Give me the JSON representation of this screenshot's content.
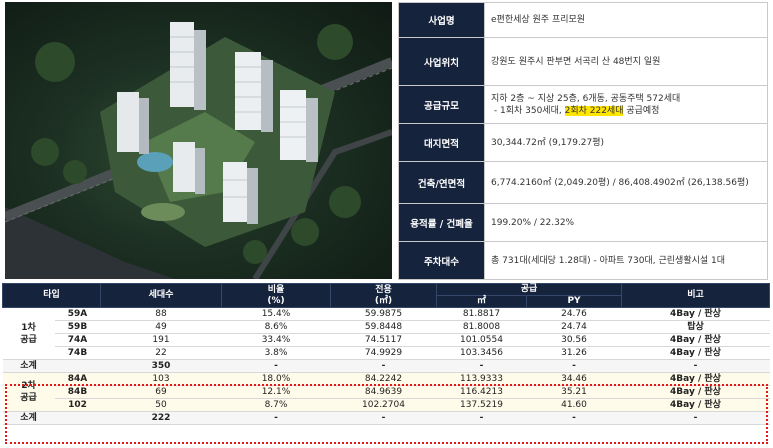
{
  "info": [
    {
      "label": "사업명",
      "value": "e편한세상 원주 프리모원"
    },
    {
      "label": "사업위치",
      "value": "강원도 원주시 판부면 서곡리 산 48번지 일원"
    },
    {
      "label": "공급규모",
      "line1": "지하 2층 ~ 지상 25층, 6개동, 공동주택 572세대",
      "line2_pre": "- 1회차 350세대, ",
      "line2_hl": "2회차 222세대",
      "line2_post": " 공급예정"
    },
    {
      "label": "대지면적",
      "value": "30,344.72㎡ (9,179.27평)"
    },
    {
      "label": "건축/연면적",
      "value": "6,774.2160㎡ (2,049.20평) / 86,408.4902㎡ (26,138.56평)"
    },
    {
      "label": "용적률 / 건폐율",
      "value": "199.20% / 22.32%"
    },
    {
      "label": "주차대수",
      "value": "총 731대(세대당 1.28대) - 아파트 730대, 근린생활시설 1대"
    }
  ],
  "spec": {
    "headers": {
      "type": "타입",
      "units": "세대수",
      "ratio": "비율",
      "ratio_unit": "(%)",
      "exclusive": "전용",
      "exclusive_unit": "(㎡)",
      "supply": "공급",
      "supply_m2": "㎡",
      "supply_py": "PY",
      "note": "비고"
    },
    "round1": {
      "label_a": "1차",
      "label_b": "공급",
      "rows": [
        {
          "type": "59A",
          "units": "88",
          "ratio": "15.4%",
          "exclusive": "59.9875",
          "m2": "81.8817",
          "py": "24.76",
          "note": "4Bay / 판상"
        },
        {
          "type": "59B",
          "units": "49",
          "ratio": "8.6%",
          "exclusive": "59.8448",
          "m2": "81.8008",
          "py": "24.74",
          "note": "탑상"
        },
        {
          "type": "74A",
          "units": "191",
          "ratio": "33.4%",
          "exclusive": "74.5117",
          "m2": "101.0554",
          "py": "30.56",
          "note": "4Bay / 판상"
        },
        {
          "type": "74B",
          "units": "22",
          "ratio": "3.8%",
          "exclusive": "74.9929",
          "m2": "103.3456",
          "py": "31.26",
          "note": "4Bay / 판상"
        }
      ],
      "subtotal": {
        "label": "소계",
        "units": "350",
        "dash": "-"
      }
    },
    "round2": {
      "label_a": "2차",
      "label_b": "공급",
      "rows": [
        {
          "type": "84A",
          "units": "103",
          "ratio": "18.0%",
          "exclusive": "84.2242",
          "m2": "113.9333",
          "py": "34.46",
          "note": "4Bay / 판상"
        },
        {
          "type": "84B",
          "units": "69",
          "ratio": "12.1%",
          "exclusive": "84.9639",
          "m2": "116.4213",
          "py": "35.21",
          "note": "4Bay / 판상"
        },
        {
          "type": "102",
          "units": "50",
          "ratio": "8.7%",
          "exclusive": "102.2704",
          "m2": "137.5219",
          "py": "41.60",
          "note": "4Bay / 판상"
        }
      ],
      "subtotal": {
        "label": "소계",
        "units": "222",
        "dash": "-"
      }
    }
  },
  "colors": {
    "header_navy": "#16233d",
    "highlight": "#ffe600",
    "dotted_border": "#e01818"
  }
}
